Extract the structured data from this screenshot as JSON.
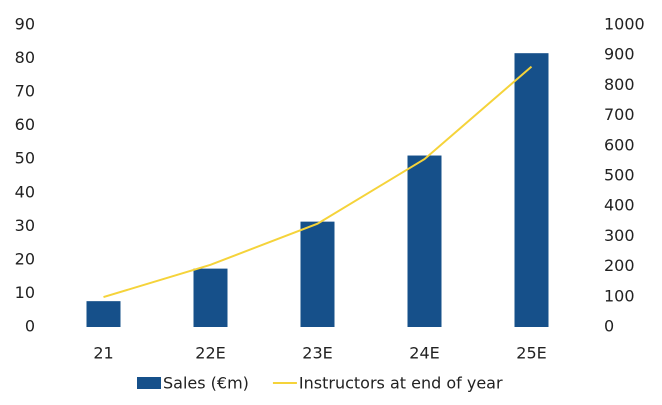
{
  "chart_data": {
    "type": "bar",
    "categories": [
      "21",
      "22E",
      "23E",
      "24E",
      "25E"
    ],
    "series": [
      {
        "name": "Sales (€m)",
        "type": "bar",
        "color": "#16508a",
        "values": [
          7.7,
          17.4,
          31.4,
          51.1,
          81.6
        ]
      },
      {
        "name": "Instructors at end of year",
        "type": "line",
        "axis": "y2",
        "color": "#f5d33a",
        "values": [
          99,
          206,
          342,
          556,
          862
        ]
      }
    ],
    "ylim": [
      0,
      90
    ],
    "yticks": [
      0,
      10,
      20,
      30,
      40,
      50,
      60,
      70,
      80,
      90
    ],
    "y2lim": [
      0,
      1000
    ],
    "y2ticks": [
      0,
      100,
      200,
      300,
      400,
      500,
      600,
      700,
      800,
      900,
      1000
    ],
    "grid": false,
    "legend": "bottom"
  }
}
